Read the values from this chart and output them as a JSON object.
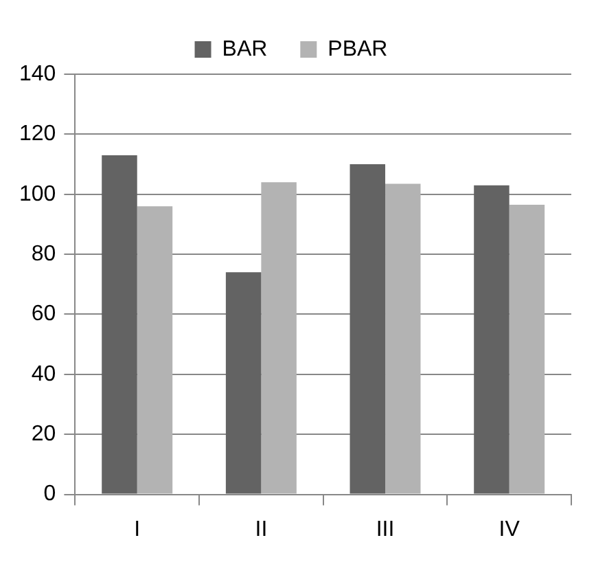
{
  "chart_data": {
    "type": "bar",
    "categories": [
      "I",
      "II",
      "III",
      "IV"
    ],
    "series": [
      {
        "name": "BAR",
        "color": "#636363",
        "values": [
          113,
          74,
          110,
          103
        ]
      },
      {
        "name": "PBAR",
        "color": "#b3b3b3",
        "values": [
          96,
          104,
          103.5,
          96.5
        ]
      }
    ],
    "ylim": [
      0,
      140
    ],
    "yticks": [
      0,
      20,
      40,
      60,
      80,
      100,
      120,
      140
    ],
    "grid": "y",
    "legend": "top"
  }
}
